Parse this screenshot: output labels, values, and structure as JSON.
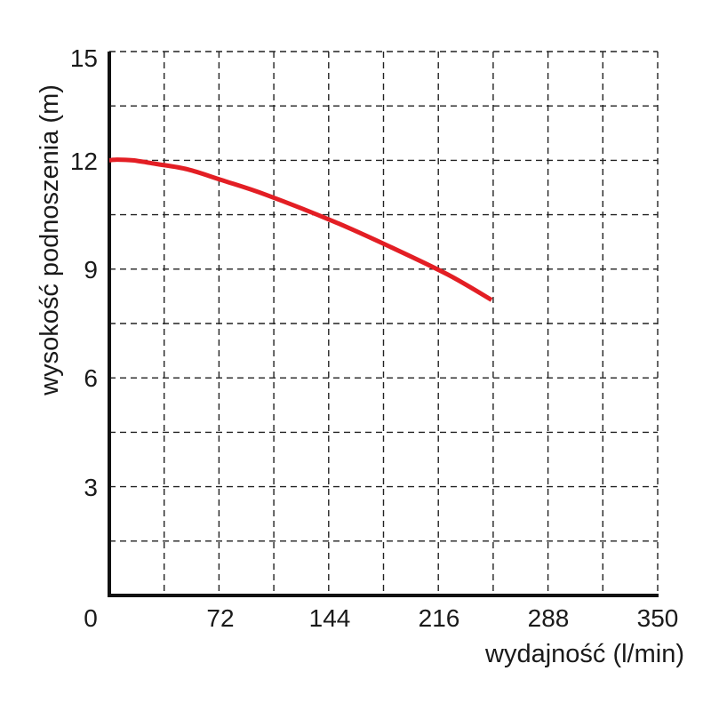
{
  "chart_data": {
    "type": "line",
    "title": "",
    "xlabel": "wydajność (l/min)",
    "ylabel": "wysokość podnoszenia (m)",
    "xlim": [
      0,
      350
    ],
    "ylim": [
      0,
      15
    ],
    "x_ticks": [
      "0",
      "72",
      "144",
      "216",
      "288",
      "350"
    ],
    "y_ticks": [
      "3",
      "6",
      "9",
      "12",
      "15"
    ],
    "grid": true,
    "grid_style": "dashed",
    "series": [
      {
        "color": "#e31e24",
        "x": [
          0,
          5,
          15,
          30,
          50,
          72,
          100,
          144,
          180,
          216,
          244
        ],
        "y": [
          12.0,
          12.02,
          12.0,
          11.9,
          11.75,
          11.45,
          11.05,
          10.3,
          9.6,
          8.85,
          8.15
        ]
      }
    ]
  }
}
